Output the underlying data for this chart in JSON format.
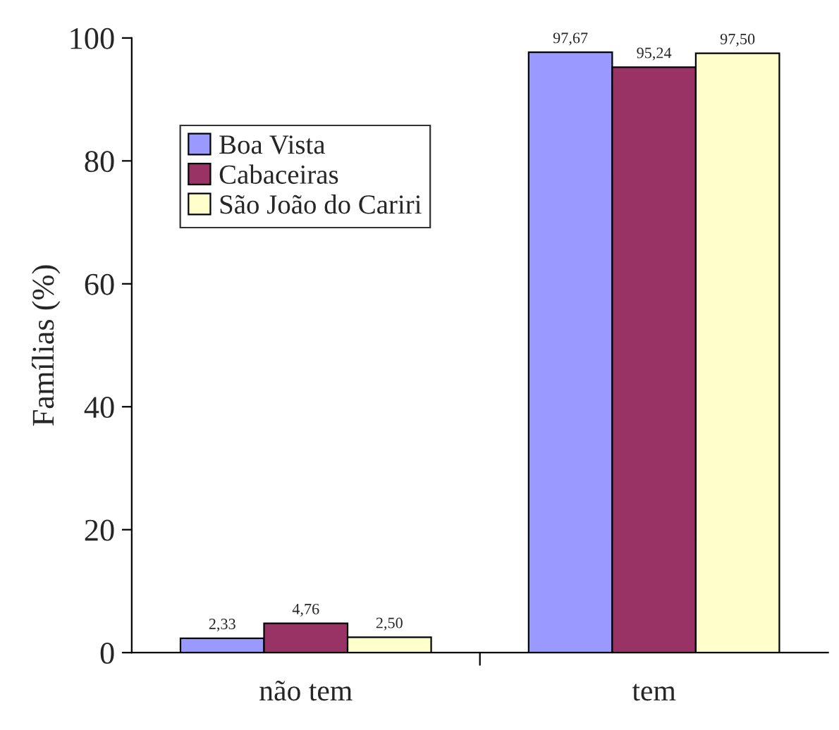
{
  "chart_data": {
    "type": "bar",
    "ylabel": "Famílias (%)",
    "categories": [
      "não tem",
      "tem"
    ],
    "series": [
      {
        "name": "Boa Vista",
        "color": "#9999ff",
        "values": [
          2.33,
          97.67
        ],
        "value_labels": [
          "2,33",
          "97,67"
        ]
      },
      {
        "name": "Cabaceiras",
        "color": "#993366",
        "values": [
          4.76,
          95.24
        ],
        "value_labels": [
          "4,76",
          "95,24"
        ]
      },
      {
        "name": "São João do Cariri",
        "color": "#ffffcc",
        "values": [
          2.5,
          97.5
        ],
        "value_labels": [
          "2,50",
          "97,50"
        ]
      }
    ],
    "ylim": [
      0,
      100
    ],
    "yticks": [
      0,
      20,
      40,
      60,
      80,
      100
    ],
    "grid": false,
    "legend": "top left"
  }
}
